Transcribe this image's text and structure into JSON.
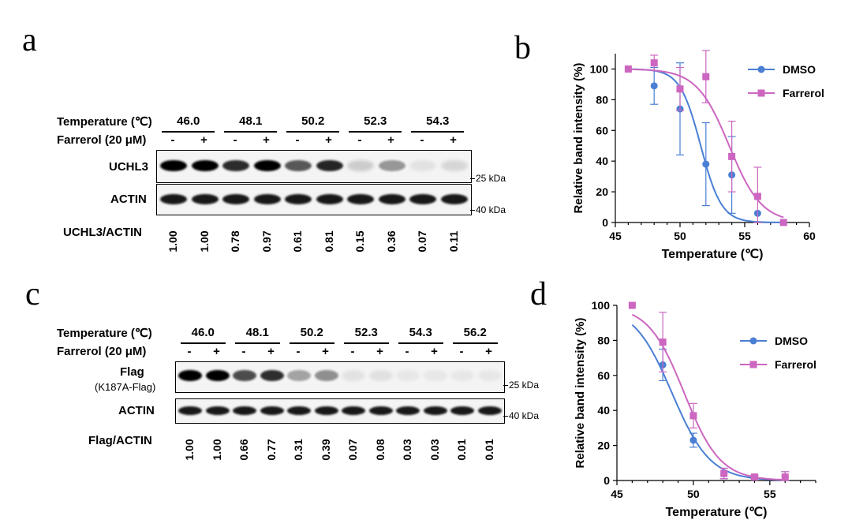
{
  "panel_a": {
    "letter": "a",
    "temperature_label": "Temperature (℃)",
    "treatment_label": "Farrerol (20 μM)",
    "temperatures": [
      "46.0",
      "48.1",
      "50.2",
      "52.3",
      "54.3"
    ],
    "signs": [
      "-",
      "+"
    ],
    "blot1_label": "UCHL3",
    "blot2_label": "ACTIN",
    "marker1": "25 kDa",
    "marker2": "40 kDa",
    "ratio_label": "UCHL3/ACTIN",
    "ratios": [
      "1.00",
      "1.00",
      "0.78",
      "0.97",
      "0.61",
      "0.81",
      "0.15",
      "0.36",
      "0.07",
      "0.11"
    ]
  },
  "panel_c": {
    "letter": "c",
    "temperature_label": "Temperature (℃)",
    "treatment_label": "Farrerol (20 μM)",
    "temperatures": [
      "46.0",
      "48.1",
      "50.2",
      "52.3",
      "54.3",
      "56.2"
    ],
    "signs": [
      "-",
      "+"
    ],
    "blot1_label": "Flag",
    "blot1_sublabel": "(K187A-Flag)",
    "blot2_label": "ACTIN",
    "marker1": "25 kDa",
    "marker2": "40 kDa",
    "ratio_label": "Flag/ACTIN",
    "ratios": [
      "1.00",
      "1.00",
      "0.66",
      "0.77",
      "0.31",
      "0.39",
      "0.07",
      "0.08",
      "0.03",
      "0.03",
      "0.01",
      "0.01"
    ]
  },
  "chart_data": [
    {
      "panel": "b",
      "type": "scatter",
      "xlabel": "Temperature (℃)",
      "ylabel": "Relative band intensity (%)",
      "xlim": [
        45,
        60
      ],
      "ylim": [
        0,
        110
      ],
      "xticks": [
        45,
        50,
        55,
        60
      ],
      "yticks": [
        0,
        20,
        40,
        60,
        80,
        100
      ],
      "legend_position": "top-right",
      "series": [
        {
          "name": "DMSO",
          "color": "#4a7fd4",
          "marker": "circle",
          "x": [
            46,
            48,
            50,
            52,
            54,
            56,
            58
          ],
          "y": [
            100,
            89,
            74,
            38,
            31,
            6,
            0
          ],
          "err": [
            0,
            12,
            30,
            27,
            25,
            0,
            0
          ],
          "fit_x50": 51.6,
          "fit_slope": 1.25
        },
        {
          "name": "Farrerol",
          "color": "#cc66c0",
          "marker": "square",
          "x": [
            46,
            48,
            50,
            52,
            54,
            56,
            58
          ],
          "y": [
            100,
            104,
            87,
            95,
            43,
            17,
            0
          ],
          "err": [
            0,
            5,
            14,
            17,
            23,
            19,
            0
          ],
          "fit_x50": 53.8,
          "fit_slope": 0.8
        }
      ]
    },
    {
      "panel": "d",
      "type": "scatter",
      "xlabel": "Temperature (℃)",
      "ylabel": "Relative band intensity (%)",
      "xlim": [
        45,
        58
      ],
      "ylim": [
        0,
        100
      ],
      "xticks": [
        45,
        50,
        55
      ],
      "yticks": [
        0,
        20,
        40,
        60,
        80,
        100
      ],
      "legend_position": "top-right",
      "series": [
        {
          "name": "DMSO",
          "color": "#4a7fd4",
          "marker": "circle",
          "x": [
            46,
            48,
            50,
            52,
            54,
            56
          ],
          "y": [
            100,
            66,
            23,
            4,
            2,
            2
          ],
          "err": [
            0,
            9,
            4,
            3,
            1,
            3
          ],
          "fit_x50": 48.6,
          "fit_slope": 0.8
        },
        {
          "name": "Farrerol",
          "color": "#cc66c0",
          "marker": "square",
          "x": [
            46,
            48,
            50,
            52,
            54,
            56
          ],
          "y": [
            100,
            79,
            37,
            4,
            2,
            2
          ],
          "err": [
            0,
            17,
            7,
            3,
            1,
            3
          ],
          "fit_x50": 49.4,
          "fit_slope": 0.85
        }
      ]
    }
  ]
}
